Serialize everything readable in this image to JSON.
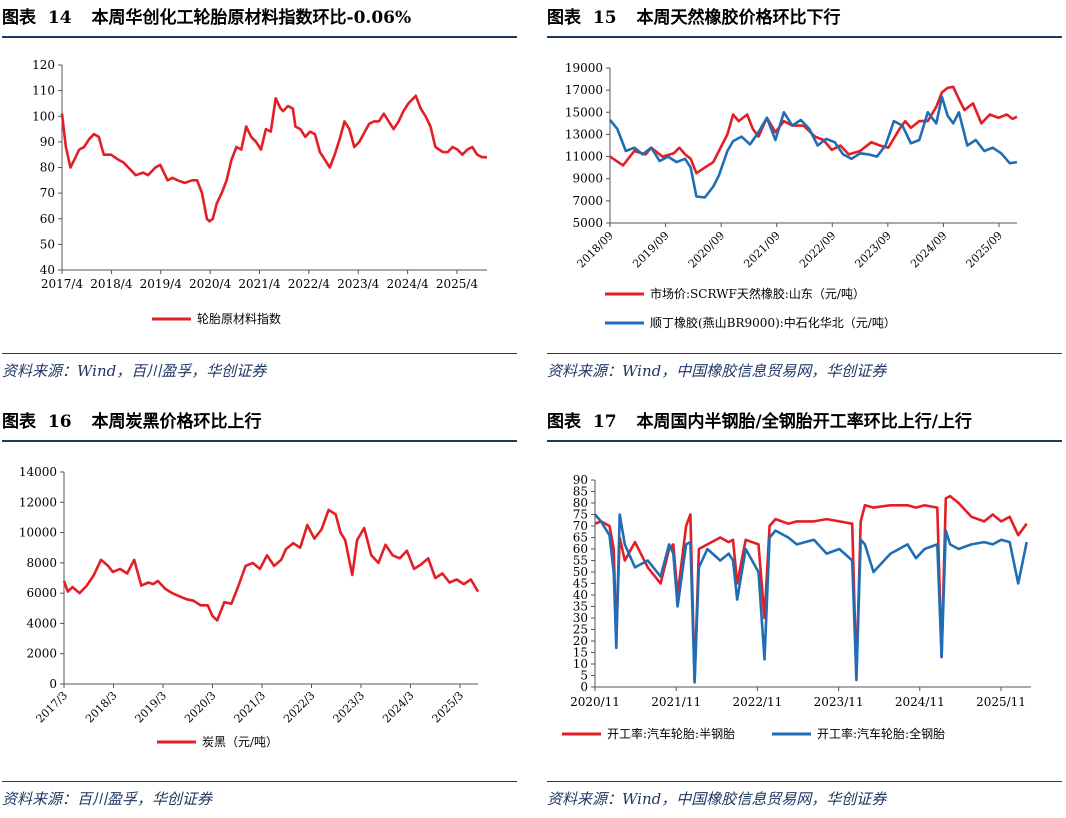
{
  "colors": {
    "red": "#e31e24",
    "blue": "#1f6eb5",
    "navy": "#1f3864"
  },
  "charts": [
    {
      "figure_label": "图表",
      "figure_num": "14",
      "heading": "本周华创化工轮胎原材料指数环比-0.06%",
      "source": "资料来源：Wind，百川盈孚，华创证券"
    },
    {
      "figure_label": "图表",
      "figure_num": "15",
      "heading": "本周天然橡胶价格环比下行",
      "source": "资料来源：Wind，中国橡胶信息贸易网，华创证券"
    },
    {
      "figure_label": "图表",
      "figure_num": "16",
      "heading": "本周炭黑价格环比上行",
      "source": "资料来源：百川盈孚，华创证券"
    },
    {
      "figure_label": "图表",
      "figure_num": "17",
      "heading": "本周国内半钢胎/全钢胎开工率环比上行/上行",
      "source": "资料来源：Wind，中国橡胶信息贸易网，华创证券"
    }
  ],
  "chart_data": [
    {
      "type": "line",
      "title": "本周华创化工轮胎原材料指数环比-0.06%",
      "ylim": [
        40,
        120
      ],
      "yticks": [
        "40",
        "50",
        "60",
        "70",
        "80",
        "90",
        "100",
        "110",
        "120"
      ],
      "xticks": [
        "2017/4",
        "2018/4",
        "2019/4",
        "2020/4",
        "2021/4",
        "2022/4",
        "2023/4",
        "2024/4",
        "2025/4"
      ],
      "x_range": [
        2017.25,
        2025.9
      ],
      "series": [
        {
          "name": "轮胎原材料指数",
          "color": "#e31e24",
          "x": [
            2017.25,
            2017.33,
            2017.42,
            2017.5,
            2017.6,
            2017.7,
            2017.8,
            2017.9,
            2018.0,
            2018.1,
            2018.25,
            2018.4,
            2018.5,
            2018.6,
            2018.75,
            2018.9,
            2019.0,
            2019.15,
            2019.25,
            2019.4,
            2019.5,
            2019.6,
            2019.75,
            2019.9,
            2020.0,
            2020.1,
            2020.2,
            2020.25,
            2020.32,
            2020.4,
            2020.5,
            2020.6,
            2020.7,
            2020.8,
            2020.9,
            2021.0,
            2021.1,
            2021.2,
            2021.3,
            2021.4,
            2021.5,
            2021.6,
            2021.7,
            2021.75,
            2021.85,
            2021.95,
            2022.0,
            2022.1,
            2022.2,
            2022.3,
            2022.4,
            2022.5,
            2022.6,
            2022.7,
            2022.8,
            2022.9,
            2023.0,
            2023.1,
            2023.2,
            2023.3,
            2023.5,
            2023.6,
            2023.7,
            2023.8,
            2023.9,
            2024.0,
            2024.1,
            2024.2,
            2024.3,
            2024.45,
            2024.55,
            2024.65,
            2024.75,
            2024.85,
            2025.0,
            2025.1,
            2025.2,
            2025.3,
            2025.4,
            2025.5,
            2025.6,
            2025.7,
            2025.8,
            2025.9
          ],
          "values": [
            101,
            88,
            80,
            83,
            87,
            88,
            91,
            93,
            92,
            85,
            85,
            83,
            82,
            80,
            77,
            78,
            77,
            80,
            81,
            75,
            76,
            75,
            74,
            75,
            75,
            70,
            60,
            59,
            60,
            66,
            70,
            75,
            83,
            88,
            87,
            96,
            92,
            90,
            87,
            95,
            94,
            107,
            103,
            102,
            104,
            103,
            96,
            95,
            92,
            94,
            93,
            86,
            83,
            80,
            85,
            91,
            98,
            95,
            88,
            90,
            97,
            98,
            98,
            101,
            98,
            95,
            98,
            102,
            105,
            108,
            103,
            100,
            96,
            88,
            86,
            86,
            88,
            87,
            85,
            87,
            88,
            85,
            84,
            84
          ]
        }
      ],
      "legend": [
        "轮胎原材料指数"
      ]
    },
    {
      "type": "line",
      "title": "本周天然橡胶价格环比下行",
      "ylim": [
        5000,
        19000
      ],
      "yticks": [
        "5000",
        "7000",
        "9000",
        "11000",
        "13000",
        "15000",
        "17000",
        "19000"
      ],
      "xticks": [
        "2018/09",
        "2019/09",
        "2020/09",
        "2021/09",
        "2022/09",
        "2023/09",
        "2024/09",
        "2025/09"
      ],
      "x_range": [
        2018.67,
        2025.88
      ],
      "series": [
        {
          "name": "市场价:SCRWF天然橡胶:山东（元/吨）",
          "color": "#e31e24",
          "x": [
            2018.67,
            2018.9,
            2019.1,
            2019.3,
            2019.4,
            2019.6,
            2019.8,
            2019.9,
            2020.0,
            2020.1,
            2020.2,
            2020.35,
            2020.5,
            2020.6,
            2020.75,
            2020.85,
            2020.95,
            2021.1,
            2021.2,
            2021.3,
            2021.45,
            2021.6,
            2021.75,
            2021.9,
            2022.1,
            2022.3,
            2022.45,
            2022.6,
            2022.75,
            2022.9,
            2023.1,
            2023.3,
            2023.45,
            2023.6,
            2023.8,
            2023.9,
            2024.0,
            2024.15,
            2024.3,
            2024.45,
            2024.55,
            2024.65,
            2024.75,
            2024.85,
            2024.95,
            2025.1,
            2025.25,
            2025.4,
            2025.55,
            2025.7,
            2025.8,
            2025.88
          ],
          "values": [
            11000,
            10200,
            11500,
            11200,
            11800,
            11000,
            11300,
            11800,
            11200,
            10800,
            9500,
            10000,
            10500,
            11500,
            13000,
            14800,
            14200,
            14800,
            13500,
            12800,
            14500,
            13200,
            14200,
            13800,
            13800,
            12800,
            12500,
            11600,
            12000,
            11200,
            11500,
            12300,
            12000,
            11800,
            13500,
            14200,
            13600,
            14200,
            14200,
            15500,
            16800,
            17200,
            17300,
            16200,
            15200,
            15800,
            14000,
            14800,
            14500,
            14800,
            14400,
            14600
          ]
        },
        {
          "name": "顺丁橡胶(燕山BR9000):中石化华北（元/吨）",
          "color": "#1f6eb5",
          "x": [
            2018.67,
            2018.8,
            2018.95,
            2019.1,
            2019.25,
            2019.4,
            2019.55,
            2019.7,
            2019.85,
            2020.0,
            2020.1,
            2020.2,
            2020.35,
            2020.5,
            2020.6,
            2020.75,
            2020.85,
            2021.0,
            2021.15,
            2021.3,
            2021.45,
            2021.6,
            2021.75,
            2021.9,
            2022.05,
            2022.2,
            2022.35,
            2022.5,
            2022.65,
            2022.8,
            2022.95,
            2023.1,
            2023.25,
            2023.4,
            2023.55,
            2023.7,
            2023.85,
            2024.0,
            2024.15,
            2024.3,
            2024.45,
            2024.55,
            2024.65,
            2024.75,
            2024.85,
            2025.0,
            2025.15,
            2025.3,
            2025.45,
            2025.6,
            2025.75,
            2025.88
          ],
          "values": [
            14300,
            13500,
            11500,
            11800,
            11200,
            11800,
            10600,
            11000,
            10500,
            10800,
            10000,
            7400,
            7300,
            8300,
            9300,
            11500,
            12400,
            12800,
            12100,
            13200,
            14500,
            12500,
            15000,
            13800,
            14300,
            13500,
            12000,
            12600,
            12300,
            11200,
            10800,
            11300,
            11200,
            11000,
            12000,
            14200,
            13800,
            12200,
            12500,
            15000,
            14000,
            16400,
            14700,
            14000,
            15000,
            12000,
            12500,
            11500,
            11800,
            11300,
            10400,
            10500
          ]
        }
      ],
      "legend": [
        "市场价:SCRWF天然橡胶:山东（元/吨）",
        "顺丁橡胶(燕山BR9000):中石化华北（元/吨）"
      ]
    },
    {
      "type": "line",
      "title": "本周炭黑价格环比上行",
      "ylim": [
        0,
        14000
      ],
      "yticks": [
        "0",
        "2000",
        "4000",
        "6000",
        "8000",
        "10000",
        "12000",
        "14000"
      ],
      "xticks": [
        "2017/3",
        "2018/3",
        "2019/3",
        "2020/3",
        "2021/3",
        "2022/3",
        "2023/3",
        "2024/3",
        "2025/3"
      ],
      "x_range": [
        2017.17,
        2025.9
      ],
      "series": [
        {
          "name": "炭黑（元/吨）",
          "color": "#e31e24",
          "x": [
            2017.17,
            2017.25,
            2017.35,
            2017.5,
            2017.65,
            2017.8,
            2017.95,
            2018.1,
            2018.2,
            2018.35,
            2018.5,
            2018.65,
            2018.8,
            2018.95,
            2019.05,
            2019.15,
            2019.3,
            2019.45,
            2019.6,
            2019.75,
            2019.9,
            2020.05,
            2020.2,
            2020.3,
            2020.4,
            2020.55,
            2020.7,
            2020.85,
            2021.0,
            2021.15,
            2021.3,
            2021.45,
            2021.6,
            2021.75,
            2021.85,
            2022.0,
            2022.15,
            2022.3,
            2022.45,
            2022.6,
            2022.75,
            2022.9,
            2023.0,
            2023.1,
            2023.25,
            2023.35,
            2023.5,
            2023.65,
            2023.8,
            2023.95,
            2024.1,
            2024.25,
            2024.4,
            2024.55,
            2024.7,
            2024.85,
            2025.0,
            2025.15,
            2025.3,
            2025.45,
            2025.6,
            2025.75,
            2025.9
          ],
          "values": [
            6800,
            6100,
            6400,
            6000,
            6500,
            7200,
            8200,
            7800,
            7400,
            7600,
            7300,
            8200,
            6500,
            6700,
            6600,
            6800,
            6300,
            6000,
            5800,
            5600,
            5500,
            5200,
            5200,
            4500,
            4200,
            5400,
            5300,
            6500,
            7800,
            8000,
            7600,
            8500,
            7800,
            8200,
            8900,
            9300,
            9000,
            10500,
            9600,
            10200,
            11500,
            11200,
            10000,
            9500,
            7200,
            9500,
            10300,
            8500,
            8000,
            9200,
            8500,
            8300,
            8800,
            7600,
            7900,
            8300,
            7000,
            7300,
            6700,
            6900,
            6600,
            6900,
            6100
          ]
        }
      ],
      "legend": [
        "炭黑（元/吨）"
      ]
    },
    {
      "type": "line",
      "title": "本周国内半钢胎/全钢胎开工率环比上行/上行",
      "ylim": [
        0,
        90
      ],
      "yticks": [
        "0",
        "5",
        "10",
        "15",
        "20",
        "25",
        "30",
        "35",
        "40",
        "45",
        "50",
        "55",
        "60",
        "65",
        "70",
        "75",
        "80",
        "85",
        "90"
      ],
      "xticks": [
        "2020/11",
        "2021/11",
        "2022/11",
        "2023/11",
        "2024/11",
        "2025/11"
      ],
      "x_range": [
        2020.83,
        2025.95
      ],
      "series": [
        {
          "name": "开工率:汽车轮胎:半钢胎",
          "color": "#e31e24",
          "x": [
            2020.83,
            2020.9,
            2021.0,
            2021.05,
            2021.08,
            2021.12,
            2021.18,
            2021.3,
            2021.45,
            2021.6,
            2021.7,
            2021.75,
            2021.8,
            2021.9,
            2021.95,
            2022.0,
            2022.05,
            2022.15,
            2022.3,
            2022.4,
            2022.45,
            2022.5,
            2022.6,
            2022.75,
            2022.82,
            2022.88,
            2022.95,
            2023.1,
            2023.2,
            2023.4,
            2023.55,
            2023.7,
            2023.85,
            2023.9,
            2023.95,
            2024.0,
            2024.1,
            2024.3,
            2024.5,
            2024.6,
            2024.7,
            2024.85,
            2024.9,
            2024.95,
            2025.0,
            2025.1,
            2025.25,
            2025.4,
            2025.5,
            2025.6,
            2025.7,
            2025.8,
            2025.9
          ],
          "values": [
            71,
            72,
            70,
            60,
            22,
            65,
            55,
            63,
            52,
            45,
            60,
            62,
            40,
            70,
            75,
            3,
            60,
            62,
            65,
            63,
            64,
            45,
            64,
            62,
            30,
            70,
            73,
            71,
            72,
            72,
            73,
            72,
            71,
            5,
            72,
            79,
            78,
            79,
            79,
            78,
            79,
            78,
            13,
            82,
            83,
            80,
            74,
            72,
            75,
            72,
            74,
            66,
            71
          ]
        },
        {
          "name": "开工率:汽车轮胎:全钢胎",
          "color": "#1f6eb5",
          "x": [
            2020.83,
            2020.9,
            2021.0,
            2021.05,
            2021.08,
            2021.12,
            2021.18,
            2021.3,
            2021.45,
            2021.6,
            2021.7,
            2021.75,
            2021.8,
            2021.9,
            2021.95,
            2022.0,
            2022.05,
            2022.15,
            2022.3,
            2022.4,
            2022.45,
            2022.5,
            2022.6,
            2022.75,
            2022.82,
            2022.88,
            2022.95,
            2023.1,
            2023.2,
            2023.4,
            2023.55,
            2023.7,
            2023.85,
            2023.9,
            2023.95,
            2024.0,
            2024.1,
            2024.3,
            2024.5,
            2024.6,
            2024.7,
            2024.85,
            2024.9,
            2024.95,
            2025.0,
            2025.1,
            2025.25,
            2025.4,
            2025.5,
            2025.6,
            2025.7,
            2025.8,
            2025.9
          ],
          "values": [
            75,
            72,
            66,
            50,
            17,
            75,
            62,
            52,
            55,
            48,
            62,
            58,
            35,
            62,
            63,
            2,
            52,
            60,
            55,
            58,
            55,
            38,
            60,
            50,
            12,
            65,
            68,
            65,
            62,
            64,
            58,
            60,
            55,
            3,
            64,
            62,
            50,
            58,
            62,
            56,
            60,
            62,
            13,
            68,
            62,
            60,
            62,
            63,
            62,
            64,
            63,
            45,
            63
          ]
        }
      ],
      "legend": [
        "开工率:汽车轮胎:半钢胎",
        "开工率:汽车轮胎:全钢胎"
      ]
    }
  ]
}
